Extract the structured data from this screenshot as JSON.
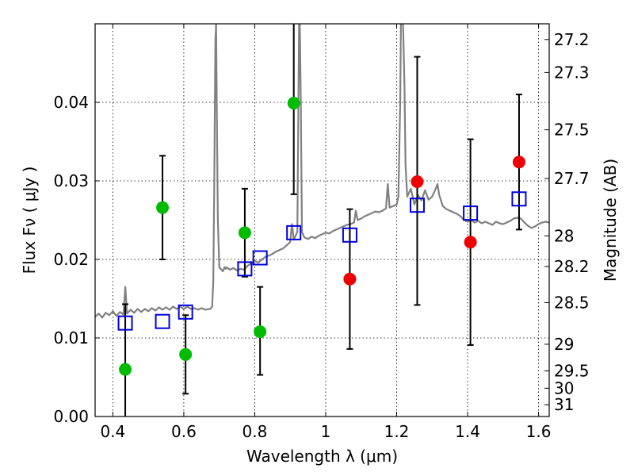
{
  "chart_data": {
    "type": "scatter",
    "xlabel": "Wavelength  λ (μm)",
    "ylabel": "Flux  Fν  ( μJy )",
    "ylabel_right": "Magnitude (AB)",
    "xlim": [
      0.35,
      1.63
    ],
    "ylim": [
      0.0,
      0.05
    ],
    "x_ticks": [
      0.4,
      0.6,
      0.8,
      1.0,
      1.2,
      1.4,
      1.6
    ],
    "x_tick_labels": [
      "0.4",
      "0.6",
      "0.8",
      "1",
      "1.2",
      "1.4",
      "1.6"
    ],
    "y_ticks": [
      0.0,
      0.01,
      0.02,
      0.03,
      0.04
    ],
    "y_tick_labels": [
      "0.00",
      "0.01",
      "0.02",
      "0.03",
      "0.04"
    ],
    "right_ticks": [
      {
        "label": "27.2",
        "flux": 0.048
      },
      {
        "label": "27.3",
        "flux": 0.0438
      },
      {
        "label": "27.5",
        "flux": 0.0365
      },
      {
        "label": "27.7",
        "flux": 0.0303
      },
      {
        "label": "28",
        "flux": 0.023
      },
      {
        "label": "28.2",
        "flux": 0.0191
      },
      {
        "label": "28.5",
        "flux": 0.0145
      },
      {
        "label": "29",
        "flux": 0.0092
      },
      {
        "label": "29.5",
        "flux": 0.0058
      },
      {
        "label": "30",
        "flux": 0.0036
      },
      {
        "label": "31",
        "flux": 0.0015
      }
    ],
    "grid": true,
    "colors": {
      "green": "#00bb00",
      "red": "#ee0000",
      "blue": "#0000dd",
      "spectrum": "#808080",
      "errorbar": "#000000"
    },
    "series": [
      {
        "name": "green points",
        "marker": "circle",
        "color": "#00bb00",
        "points": [
          {
            "x": 0.435,
            "y": 0.006,
            "err_lo": 0.006,
            "err_hi": 0.0083
          },
          {
            "x": 0.54,
            "y": 0.0266,
            "err_lo": 0.0066,
            "err_hi": 0.0066
          },
          {
            "x": 0.605,
            "y": 0.0079,
            "err_lo": 0.005,
            "err_hi": 0.005
          },
          {
            "x": 0.772,
            "y": 0.0234,
            "err_lo": 0.0056,
            "err_hi": 0.0056
          },
          {
            "x": 0.815,
            "y": 0.0108,
            "err_lo": 0.0055,
            "err_hi": 0.0057
          },
          {
            "x": 0.91,
            "y": 0.0399,
            "err_lo": 0.0116,
            "err_hi": 0.0111
          }
        ]
      },
      {
        "name": "red points",
        "marker": "circle",
        "color": "#ee0000",
        "points": [
          {
            "x": 1.068,
            "y": 0.0175,
            "err_lo": 0.0089,
            "err_hi": 0.0089
          },
          {
            "x": 1.258,
            "y": 0.0299,
            "err_lo": 0.0157,
            "err_hi": 0.0159
          },
          {
            "x": 1.408,
            "y": 0.0222,
            "err_lo": 0.0131,
            "err_hi": 0.0131
          },
          {
            "x": 1.545,
            "y": 0.0324,
            "err_lo": 0.0086,
            "err_hi": 0.0086
          }
        ]
      },
      {
        "name": "blue squares",
        "marker": "square",
        "color": "#0000dd",
        "points": [
          {
            "x": 0.435,
            "y": 0.0119
          },
          {
            "x": 0.54,
            "y": 0.0121
          },
          {
            "x": 0.605,
            "y": 0.0133
          },
          {
            "x": 0.772,
            "y": 0.0188
          },
          {
            "x": 0.815,
            "y": 0.0202
          },
          {
            "x": 0.91,
            "y": 0.0234
          },
          {
            "x": 1.068,
            "y": 0.0231
          },
          {
            "x": 1.258,
            "y": 0.0269
          },
          {
            "x": 1.408,
            "y": 0.0259
          },
          {
            "x": 1.545,
            "y": 0.0277
          }
        ]
      }
    ],
    "spectrum": [
      [
        0.35,
        0.0127
      ],
      [
        0.36,
        0.0131
      ],
      [
        0.37,
        0.0126
      ],
      [
        0.38,
        0.0132
      ],
      [
        0.39,
        0.0129
      ],
      [
        0.4,
        0.0134
      ],
      [
        0.41,
        0.0128
      ],
      [
        0.42,
        0.0133
      ],
      [
        0.43,
        0.013
      ],
      [
        0.435,
        0.0165
      ],
      [
        0.44,
        0.0131
      ],
      [
        0.45,
        0.0136
      ],
      [
        0.46,
        0.0132
      ],
      [
        0.47,
        0.0137
      ],
      [
        0.48,
        0.0133
      ],
      [
        0.49,
        0.0137
      ],
      [
        0.5,
        0.0134
      ],
      [
        0.51,
        0.0138
      ],
      [
        0.52,
        0.0135
      ],
      [
        0.53,
        0.0139
      ],
      [
        0.54,
        0.0136
      ],
      [
        0.55,
        0.0139
      ],
      [
        0.56,
        0.0136
      ],
      [
        0.57,
        0.014
      ],
      [
        0.58,
        0.0137
      ],
      [
        0.59,
        0.014
      ],
      [
        0.6,
        0.0137
      ],
      [
        0.61,
        0.014
      ],
      [
        0.62,
        0.0137
      ],
      [
        0.63,
        0.0138
      ],
      [
        0.64,
        0.0136
      ],
      [
        0.65,
        0.0138
      ],
      [
        0.66,
        0.0136
      ],
      [
        0.67,
        0.0137
      ],
      [
        0.675,
        0.0137
      ],
      [
        0.68,
        0.014
      ],
      [
        0.683,
        0.017
      ],
      [
        0.686,
        0.03
      ],
      [
        0.689,
        0.048
      ],
      [
        0.691,
        0.05
      ],
      [
        0.693,
        0.04
      ],
      [
        0.696,
        0.025
      ],
      [
        0.7,
        0.019
      ],
      [
        0.71,
        0.0185
      ],
      [
        0.715,
        0.019
      ],
      [
        0.718,
        0.0188
      ],
      [
        0.72,
        0.019
      ],
      [
        0.73,
        0.0187
      ],
      [
        0.74,
        0.0189
      ],
      [
        0.75,
        0.0186
      ],
      [
        0.76,
        0.0188
      ],
      [
        0.77,
        0.0187
      ],
      [
        0.78,
        0.0192
      ],
      [
        0.79,
        0.0195
      ],
      [
        0.8,
        0.0198
      ],
      [
        0.81,
        0.0196
      ],
      [
        0.82,
        0.02
      ],
      [
        0.83,
        0.0203
      ],
      [
        0.84,
        0.0205
      ],
      [
        0.85,
        0.0207
      ],
      [
        0.86,
        0.021
      ],
      [
        0.87,
        0.0212
      ],
      [
        0.88,
        0.0214
      ],
      [
        0.89,
        0.0218
      ],
      [
        0.9,
        0.0222
      ],
      [
        0.905,
        0.0245
      ],
      [
        0.91,
        0.0225
      ],
      [
        0.915,
        0.023
      ],
      [
        0.92,
        0.0235
      ],
      [
        0.925,
        0.05
      ],
      [
        0.927,
        0.05
      ],
      [
        0.93,
        0.04
      ],
      [
        0.933,
        0.0235
      ],
      [
        0.94,
        0.0228
      ],
      [
        0.95,
        0.0226
      ],
      [
        0.96,
        0.0229
      ],
      [
        0.97,
        0.0227
      ],
      [
        0.98,
        0.023
      ],
      [
        0.99,
        0.0232
      ],
      [
        1.0,
        0.0234
      ],
      [
        1.01,
        0.0233
      ],
      [
        1.02,
        0.0236
      ],
      [
        1.03,
        0.0238
      ],
      [
        1.04,
        0.024
      ],
      [
        1.05,
        0.0242
      ],
      [
        1.06,
        0.0244
      ],
      [
        1.07,
        0.0245
      ],
      [
        1.08,
        0.0247
      ],
      [
        1.085,
        0.0262
      ],
      [
        1.09,
        0.025
      ],
      [
        1.1,
        0.0252
      ],
      [
        1.11,
        0.0255
      ],
      [
        1.12,
        0.0257
      ],
      [
        1.13,
        0.0259
      ],
      [
        1.14,
        0.0261
      ],
      [
        1.15,
        0.026
      ],
      [
        1.16,
        0.0262
      ],
      [
        1.17,
        0.0265
      ],
      [
        1.175,
        0.0296
      ],
      [
        1.18,
        0.0266
      ],
      [
        1.19,
        0.0268
      ],
      [
        1.2,
        0.027
      ],
      [
        1.205,
        0.028
      ],
      [
        1.21,
        0.04
      ],
      [
        1.212,
        0.05
      ],
      [
        1.218,
        0.05
      ],
      [
        1.222,
        0.042
      ],
      [
        1.225,
        0.032
      ],
      [
        1.23,
        0.028
      ],
      [
        1.24,
        0.029
      ],
      [
        1.25,
        0.027
      ],
      [
        1.26,
        0.0282
      ],
      [
        1.27,
        0.0275
      ],
      [
        1.28,
        0.0288
      ],
      [
        1.29,
        0.0276
      ],
      [
        1.3,
        0.028
      ],
      [
        1.31,
        0.029
      ],
      [
        1.315,
        0.0296
      ],
      [
        1.32,
        0.0282
      ],
      [
        1.33,
        0.0268
      ],
      [
        1.34,
        0.0264
      ],
      [
        1.35,
        0.0262
      ],
      [
        1.36,
        0.026
      ],
      [
        1.37,
        0.0258
      ],
      [
        1.38,
        0.0255
      ],
      [
        1.39,
        0.025
      ],
      [
        1.4,
        0.0248
      ],
      [
        1.41,
        0.025
      ],
      [
        1.42,
        0.0247
      ],
      [
        1.43,
        0.0249
      ],
      [
        1.44,
        0.0246
      ],
      [
        1.45,
        0.0248
      ],
      [
        1.46,
        0.0246
      ],
      [
        1.47,
        0.0244
      ],
      [
        1.48,
        0.0248
      ],
      [
        1.49,
        0.0246
      ],
      [
        1.5,
        0.0245
      ],
      [
        1.51,
        0.0247
      ],
      [
        1.52,
        0.0249
      ],
      [
        1.53,
        0.0252
      ],
      [
        1.54,
        0.0253
      ],
      [
        1.55,
        0.0252
      ],
      [
        1.56,
        0.0247
      ],
      [
        1.57,
        0.0243
      ],
      [
        1.58,
        0.024
      ],
      [
        1.59,
        0.0242
      ],
      [
        1.6,
        0.0245
      ],
      [
        1.61,
        0.0247
      ],
      [
        1.62,
        0.0248
      ],
      [
        1.63,
        0.0247
      ]
    ]
  }
}
